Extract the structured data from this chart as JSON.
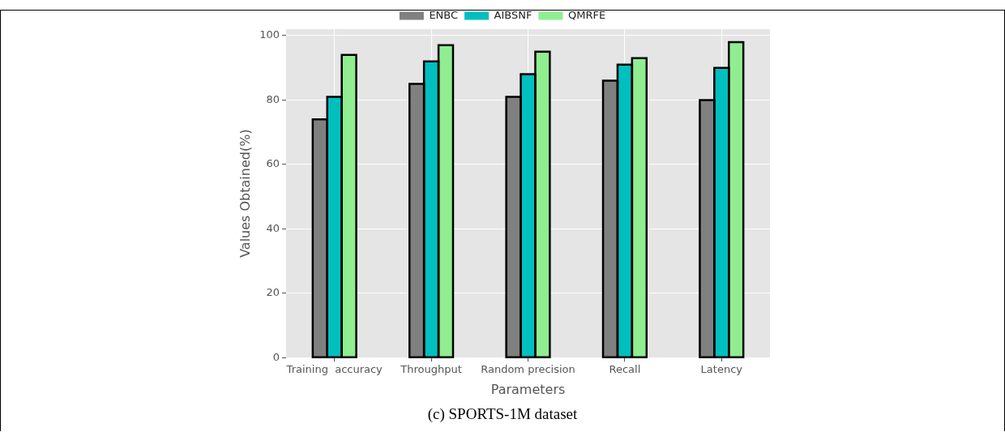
{
  "chart_data": {
    "type": "bar",
    "xlabel": "Parameters",
    "ylabel": "Values Obtained(%)",
    "categories": [
      "Training  accuracy",
      "Throughput",
      "Random precision",
      "Recall",
      "Latency"
    ],
    "series": [
      {
        "name": "ENBC",
        "color": "#808080",
        "values": [
          74,
          85,
          81,
          86,
          80
        ]
      },
      {
        "name": "AIBSNF",
        "color": "#00bfbf",
        "values": [
          81,
          92,
          88,
          91,
          90
        ]
      },
      {
        "name": "QMRFE",
        "color": "#90ee90",
        "values": [
          94,
          97,
          95,
          93,
          98
        ]
      }
    ],
    "ylim": [
      0,
      102
    ],
    "yticks": [
      0,
      20,
      40,
      60,
      80,
      100
    ],
    "grid": true,
    "legend": "top",
    "annotations": [
      "(c) SPORTS-1M dataset"
    ]
  }
}
